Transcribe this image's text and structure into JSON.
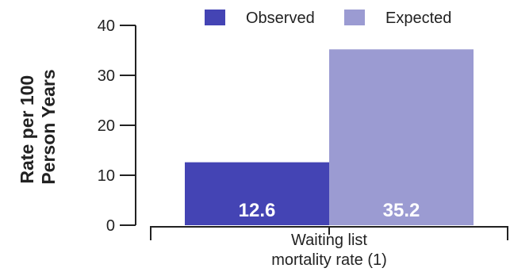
{
  "chart_data": {
    "type": "bar",
    "categories": [
      "Waiting list mortality rate (1)"
    ],
    "category_label_lines": [
      "Waiting list",
      "mortality rate (1)"
    ],
    "series": [
      {
        "name": "Observed",
        "values": [
          12.6
        ],
        "color": "#4444b4",
        "label": "12.6"
      },
      {
        "name": "Expected",
        "values": [
          35.2
        ],
        "color": "#9b9bd2",
        "label": "35.2"
      }
    ],
    "ylabel_lines": [
      "Rate per 100",
      "Person Years"
    ],
    "ylim": [
      0,
      40
    ],
    "yticks": [
      0,
      10,
      20,
      30,
      40
    ],
    "grid": false,
    "legend_position": "top"
  }
}
